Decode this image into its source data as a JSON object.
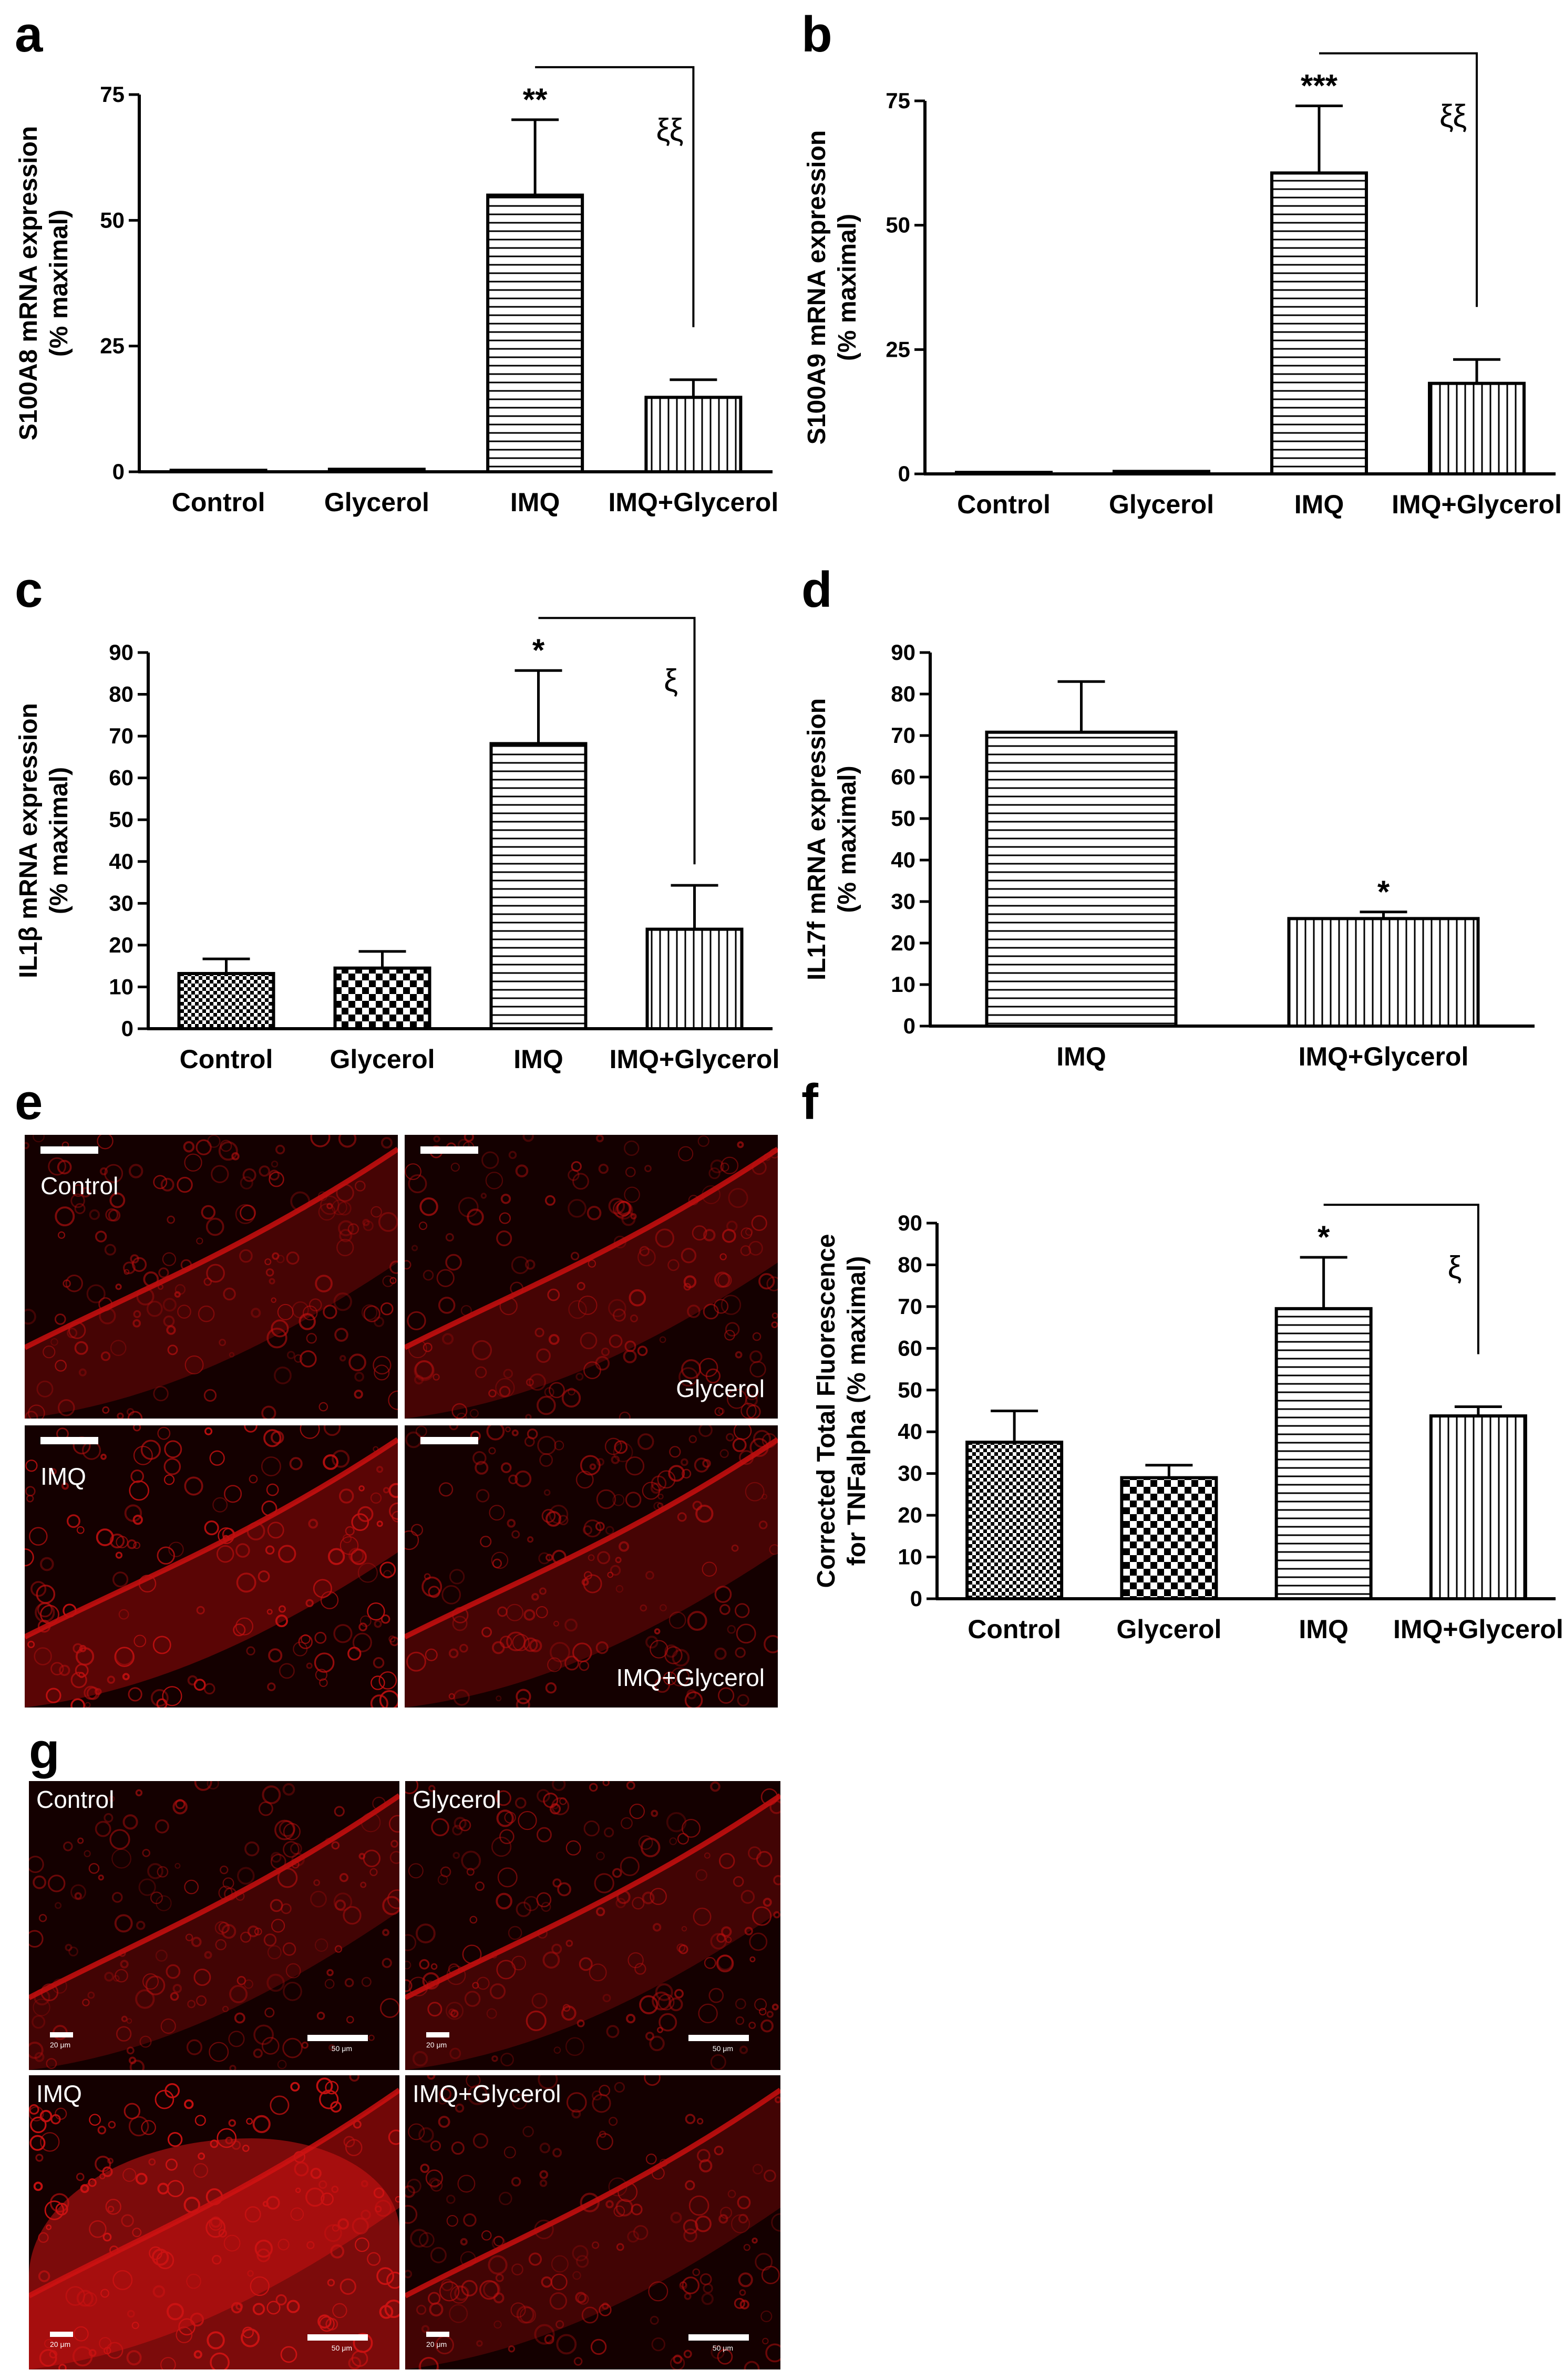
{
  "panels": {
    "a": "a",
    "b": "b",
    "c": "c",
    "d": "d",
    "e": "e",
    "f": "f",
    "g": "g"
  },
  "chart_data": [
    {
      "id": "a",
      "type": "bar",
      "categories": [
        "Control",
        "Glycerol",
        "IMQ",
        "IMQ+Glycerol"
      ],
      "values": [
        0.3,
        0.5,
        55,
        14.8
      ],
      "errors": [
        0,
        0,
        15,
        3.5
      ],
      "ylabel": [
        "S100A8 mRNA expression",
        "(% maximal)"
      ],
      "ylim": [
        0,
        75
      ],
      "yticks": [
        0,
        25,
        50,
        75
      ],
      "patterns": [
        "none",
        "none",
        "hstripe",
        "vstripe"
      ],
      "bar_labels": [
        "",
        "",
        "**",
        ""
      ],
      "bracket": {
        "from": 2,
        "to": 3,
        "label": "ξξ"
      }
    },
    {
      "id": "b",
      "type": "bar",
      "categories": [
        "Control",
        "Glycerol",
        "IMQ",
        "IMQ+Glycerol"
      ],
      "values": [
        0.3,
        0.5,
        60.5,
        18.2
      ],
      "errors": [
        0,
        0,
        13.5,
        4.8
      ],
      "ylabel": [
        "S100A9 mRNA expression",
        "(% maximal)"
      ],
      "ylim": [
        0,
        75
      ],
      "yticks": [
        0,
        25,
        50,
        75
      ],
      "patterns": [
        "none",
        "none",
        "hstripe",
        "vstripe"
      ],
      "bar_labels": [
        "",
        "",
        "***",
        ""
      ],
      "bracket": {
        "from": 2,
        "to": 3,
        "label": "ξξ"
      }
    },
    {
      "id": "c",
      "type": "bar",
      "categories": [
        "Control",
        "Glycerol",
        "IMQ",
        "IMQ+Glycerol"
      ],
      "values": [
        13.2,
        14.5,
        68.2,
        23.8
      ],
      "errors": [
        3.5,
        4,
        17.5,
        10.5
      ],
      "ylabel": [
        "IL1β mRNA expression",
        "(% maximal)"
      ],
      "ylim": [
        0,
        90
      ],
      "yticks": [
        0,
        10,
        20,
        30,
        40,
        50,
        60,
        70,
        80,
        90
      ],
      "patterns": [
        "dots",
        "check",
        "hstripe",
        "vstripe"
      ],
      "bar_labels": [
        "",
        "",
        "*",
        ""
      ],
      "bracket": {
        "from": 2,
        "to": 3,
        "label": "ξ"
      }
    },
    {
      "id": "d",
      "type": "bar",
      "categories": [
        "IMQ",
        "IMQ+Glycerol"
      ],
      "values": [
        70.8,
        25.9
      ],
      "errors": [
        12.2,
        1.6
      ],
      "ylabel": [
        "IL17f mRNA expression",
        "(% maximal)"
      ],
      "ylim": [
        0,
        90
      ],
      "yticks": [
        0,
        10,
        20,
        30,
        40,
        50,
        60,
        70,
        80,
        90
      ],
      "patterns": [
        "hstripe",
        "vstripe"
      ],
      "bar_labels": [
        "",
        "*"
      ],
      "bracket": null
    },
    {
      "id": "f",
      "type": "bar",
      "categories": [
        "Control",
        "Glycerol",
        "IMQ",
        "IMQ+Glycerol"
      ],
      "values": [
        37.5,
        29,
        69.5,
        43.8
      ],
      "errors": [
        7.5,
        3,
        12.3,
        2.2
      ],
      "ylabel": [
        "Corrected Total Fluorescence",
        "for TNFalpha (% maximal)"
      ],
      "ylim": [
        0,
        90
      ],
      "yticks": [
        0,
        10,
        20,
        30,
        40,
        50,
        60,
        70,
        80,
        90
      ],
      "patterns": [
        "dots",
        "check",
        "hstripe",
        "vstripe"
      ],
      "bar_labels": [
        "",
        "",
        "*",
        ""
      ],
      "bracket": {
        "from": 2,
        "to": 3,
        "label": "ξ"
      }
    }
  ],
  "micrographs_e": {
    "tiles": [
      {
        "label": "Control",
        "pos": "top-left"
      },
      {
        "label": "Glycerol",
        "pos": "bottom-right"
      },
      {
        "label": "IMQ",
        "pos": "top-left"
      },
      {
        "label": "IMQ+Glycerol",
        "pos": "bottom-right"
      }
    ]
  },
  "micrographs_g": {
    "tiles": [
      {
        "label": "Control",
        "scale_small": "20 μm",
        "scale_large": "50 μm"
      },
      {
        "label": "Glycerol",
        "scale_small": "20 μm",
        "scale_large": "50 μm"
      },
      {
        "label": "IMQ",
        "scale_small": "20 μm",
        "scale_large": "50 μm"
      },
      {
        "label": "IMQ+Glycerol",
        "scale_small": "20 μm",
        "scale_large": "50 μm"
      }
    ]
  },
  "colors": {
    "bar_stroke": "#000000",
    "tissue_dark": "#1a0000",
    "tissue_bright": "#e01010"
  }
}
